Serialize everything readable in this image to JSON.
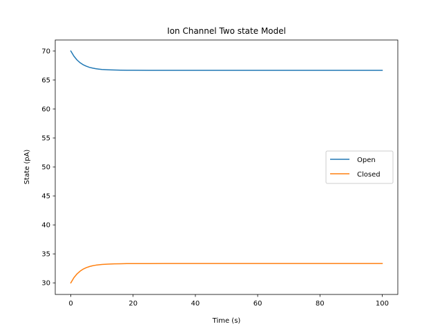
{
  "chart_data": {
    "type": "line",
    "title": "Ion Channel Two state Model",
    "xlabel": "Time (s)",
    "ylabel": "State (pA)",
    "xlim": [
      -5,
      105
    ],
    "ylim": [
      28.0,
      71.9
    ],
    "xticks": [
      0,
      20,
      40,
      60,
      80,
      100
    ],
    "yticks": [
      30,
      35,
      40,
      45,
      50,
      55,
      60,
      65,
      70
    ],
    "grid": false,
    "legend_position": "center-right",
    "x": [
      0,
      1,
      2,
      3,
      4,
      5,
      6,
      7,
      8,
      9,
      10,
      12,
      14,
      16,
      18,
      20,
      25,
      30,
      40,
      50,
      60,
      70,
      80,
      90,
      100
    ],
    "series": [
      {
        "name": "Open",
        "color": "#1f77b4",
        "values": [
          70.0,
          69.1,
          68.45,
          67.97,
          67.62,
          67.37,
          67.18,
          67.05,
          66.95,
          66.88,
          66.82,
          66.76,
          66.72,
          66.7,
          66.68,
          66.675,
          66.67,
          66.667,
          66.667,
          66.667,
          66.667,
          66.667,
          66.667,
          66.667,
          66.667
        ]
      },
      {
        "name": "Closed",
        "color": "#ff7f0e",
        "values": [
          30.0,
          30.9,
          31.55,
          32.03,
          32.38,
          32.63,
          32.82,
          32.95,
          33.05,
          33.12,
          33.18,
          33.24,
          33.28,
          33.3,
          33.32,
          33.325,
          33.33,
          33.333,
          33.333,
          33.333,
          33.333,
          33.333,
          33.333,
          33.333,
          33.333
        ]
      }
    ]
  }
}
